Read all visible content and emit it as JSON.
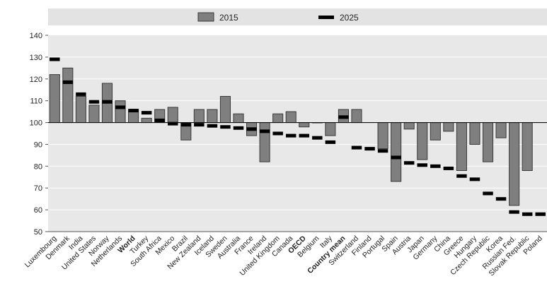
{
  "colors": {
    "legend_band": "#e3e3e3",
    "plot_background": "#e8e8e8",
    "grid": "#ffffff",
    "bar_fill": "#7f7f7f",
    "bar_stroke": "#3a3a3a",
    "marker": "#000000"
  },
  "chart_data": {
    "type": "bar",
    "title": "",
    "xlabel": "",
    "ylabel": "",
    "ylim": [
      50,
      140
    ],
    "yticks": [
      50,
      60,
      70,
      80,
      90,
      100,
      110,
      120,
      130,
      140
    ],
    "baseline": 100,
    "grid": true,
    "legend_position": "top",
    "categories": [
      "Luxembourg",
      "Denmark",
      "India",
      "United States",
      "Norway",
      "Netherlands",
      "World",
      "Turkey",
      "South Africa",
      "Mexico",
      "Brazil",
      "New Zealand",
      "Iceland",
      "Sweden",
      "Australia",
      "France",
      "Ireland",
      "United Kingdom",
      "Canada",
      "OECD",
      "Belgium",
      "Italy",
      "Country mean",
      "Switzerland",
      "Finland",
      "Portugal",
      "Spain",
      "Austria",
      "Japan",
      "Germany",
      "China",
      "Greece",
      "Hungary",
      "Czech Republic",
      "Korea",
      "Russian Fed.",
      "Slovak Republic",
      "Poland"
    ],
    "bold_categories": [
      "World",
      "OECD",
      "Country mean"
    ],
    "series": [
      {
        "name": "2015",
        "mark": "bar",
        "values": [
          122,
          125,
          112,
          108,
          118,
          110,
          106,
          102,
          106,
          107,
          92,
          106,
          106,
          112,
          104,
          94,
          82,
          104,
          105,
          98,
          100,
          94,
          106,
          106,
          null,
          88,
          73,
          97,
          83,
          92,
          96,
          78,
          90,
          82,
          93,
          62,
          78,
          null
        ]
      },
      {
        "name": "2025",
        "mark": "dash",
        "values": [
          129,
          118.5,
          113,
          109.5,
          109.5,
          107,
          105.5,
          104.5,
          101,
          99.5,
          99,
          99,
          98.5,
          98,
          97.5,
          97,
          96,
          95,
          94,
          94,
          93,
          91,
          102.5,
          88.5,
          88,
          87,
          84,
          81.5,
          80.5,
          80,
          79,
          75.5,
          74,
          67.5,
          65,
          59,
          58,
          58
        ]
      }
    ]
  }
}
